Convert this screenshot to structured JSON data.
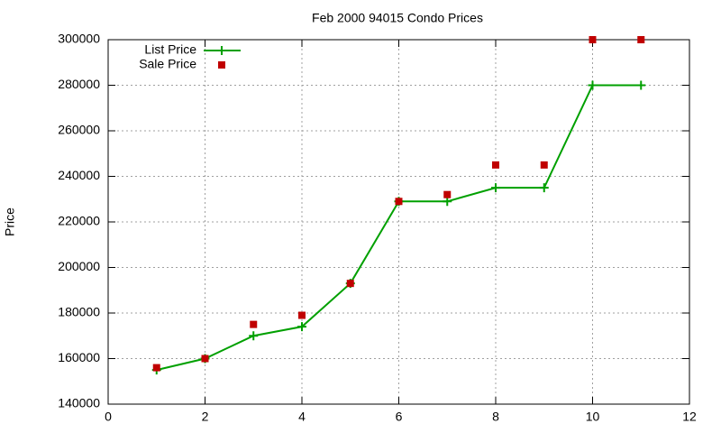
{
  "chart_data": {
    "type": "line",
    "title": "Feb 2000 94015 Condo Prices",
    "ylabel": "Price",
    "x": [
      1,
      2,
      3,
      4,
      5,
      6,
      7,
      8,
      9,
      10,
      11
    ],
    "series": [
      {
        "name": "List Price",
        "color": "#00a000",
        "mode": "linespoints",
        "values": [
          155000,
          160000,
          170000,
          174000,
          193000,
          229000,
          229000,
          235000,
          235000,
          280000,
          280000
        ]
      },
      {
        "name": "Sale Price",
        "color": "#c00000",
        "mode": "points",
        "values": [
          156000,
          160000,
          175000,
          179000,
          193000,
          229000,
          232000,
          245000,
          245000,
          300000,
          300000
        ]
      }
    ],
    "xlim": [
      0,
      12
    ],
    "xticks": [
      0,
      2,
      4,
      6,
      8,
      10,
      12
    ],
    "ylim": [
      140000,
      300000
    ],
    "yticks": [
      140000,
      160000,
      180000,
      200000,
      220000,
      240000,
      260000,
      280000,
      300000
    ],
    "grid": true,
    "legend": "top-left"
  }
}
